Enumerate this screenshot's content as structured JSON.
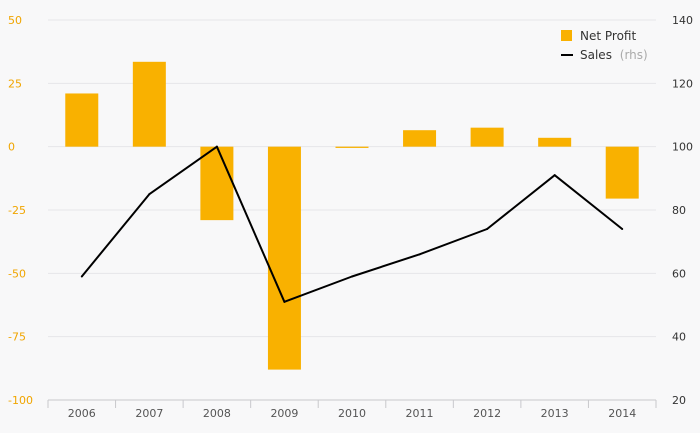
{
  "chart_data": {
    "type": "bar",
    "categories": [
      "2006",
      "2007",
      "2008",
      "2009",
      "2010",
      "2011",
      "2012",
      "2013",
      "2014"
    ],
    "series": [
      {
        "name": "Net Profit",
        "type": "bar",
        "axis": "left",
        "color": "#f9b100",
        "values": [
          21,
          33.5,
          -29,
          -88,
          -0.5,
          6.5,
          7.5,
          3.5,
          -20.5
        ]
      },
      {
        "name": "Sales",
        "name_suffix": "(rhs)",
        "type": "line",
        "axis": "right",
        "color": "#000000",
        "values": [
          59,
          85,
          100,
          51,
          59,
          66,
          74,
          91,
          74
        ]
      }
    ],
    "y_left": {
      "ticks": [
        "50",
        "25",
        "0",
        "-25",
        "-50",
        "-75",
        "-100"
      ],
      "lim": [
        -100,
        50
      ],
      "color": "#f0a500"
    },
    "y_right": {
      "ticks": [
        "140",
        "120",
        "100",
        "80",
        "60",
        "40",
        "20"
      ],
      "lim": [
        20,
        140
      ]
    },
    "grid": true,
    "legend_position": "top-right"
  }
}
